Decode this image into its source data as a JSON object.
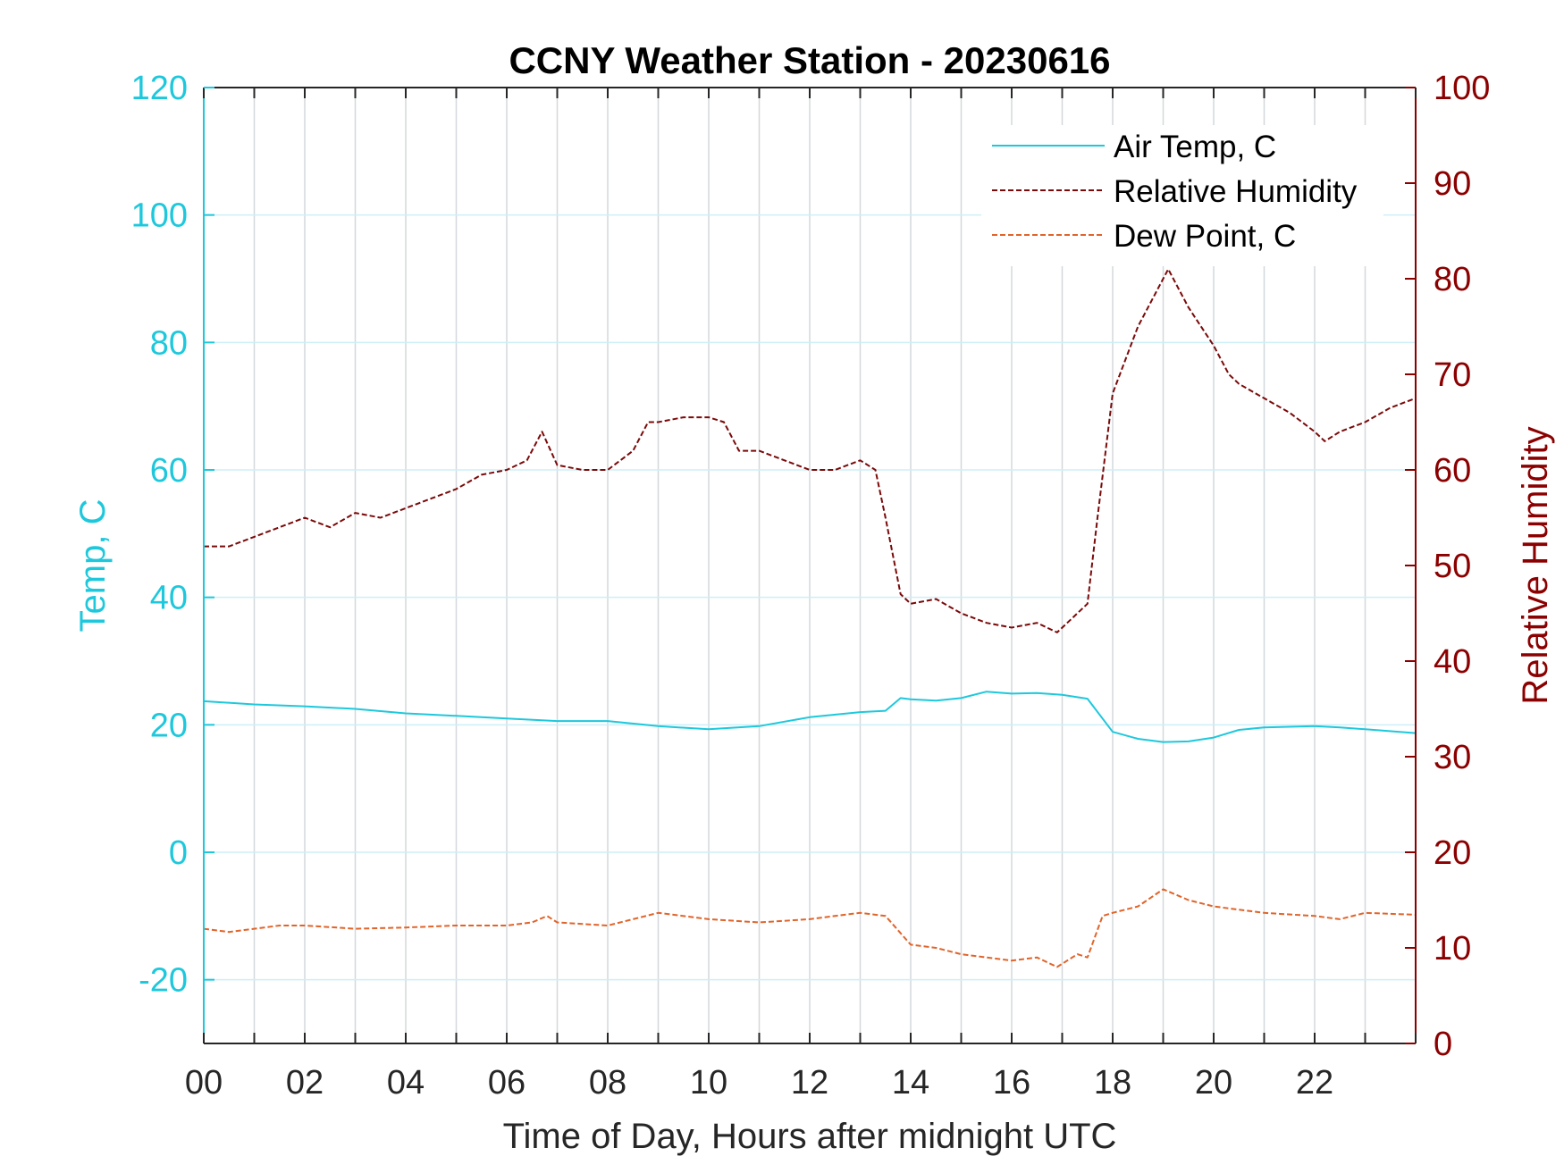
{
  "chart_data": {
    "type": "line",
    "title": "CCNY Weather Station - 20230616",
    "xlabel": "Time of Day, Hours after midnight UTC",
    "ylabel_left": "Temp, C",
    "ylabel_right": "Relative Humidity",
    "xlim": [
      0,
      24
    ],
    "ylim_left": [
      -30,
      120
    ],
    "ylim_right": [
      0,
      100
    ],
    "x_ticks": [
      0,
      2,
      4,
      6,
      8,
      10,
      12,
      14,
      16,
      18,
      20,
      22
    ],
    "x_tick_labels": [
      "00",
      "02",
      "04",
      "06",
      "08",
      "10",
      "12",
      "14",
      "16",
      "18",
      "20",
      "22"
    ],
    "y_left_ticks": [
      -20,
      0,
      20,
      40,
      60,
      80,
      100,
      120
    ],
    "y_left_tick_labels": [
      "-20",
      "0",
      "20",
      "40",
      "60",
      "80",
      "100",
      "120"
    ],
    "y_right_ticks": [
      0,
      10,
      20,
      30,
      40,
      50,
      60,
      70,
      80,
      90,
      100
    ],
    "y_right_tick_labels": [
      "0",
      "10",
      "20",
      "30",
      "40",
      "50",
      "60",
      "70",
      "80",
      "90",
      "100"
    ],
    "grid": true,
    "legend_position": "top-right",
    "colors": {
      "left_axis": "#1ec8dc",
      "right_axis": "#8b0000",
      "air_temp": "#1ec8dc",
      "relative_humidity": "#7a0a0a",
      "dew_point": "#e0642a",
      "grid_x": "#d4d8dc",
      "grid_y": "#cdeff7",
      "tick_x": "#262626"
    },
    "series": [
      {
        "name": "Air Temp, C",
        "axis": "left",
        "style": "solid",
        "x": [
          0,
          1,
          2,
          3,
          4,
          5,
          6,
          7,
          8,
          9,
          10,
          11,
          12,
          13,
          13.5,
          13.8,
          14,
          14.5,
          15,
          15.5,
          16,
          16.5,
          17,
          17.5,
          18,
          18.5,
          19,
          19.5,
          20,
          20.5,
          21,
          21.5,
          22,
          22.5,
          23,
          24
        ],
        "values": [
          23.7,
          23.2,
          22.9,
          22.5,
          21.8,
          21.4,
          21.0,
          20.6,
          20.6,
          19.8,
          19.3,
          19.8,
          21.2,
          22.0,
          22.2,
          24.2,
          24.0,
          23.8,
          24.2,
          25.2,
          24.9,
          25.0,
          24.7,
          24.1,
          18.9,
          17.8,
          17.3,
          17.4,
          18.0,
          19.2,
          19.6,
          19.7,
          19.8,
          19.6,
          19.3,
          18.7
        ]
      },
      {
        "name": "Relative Humidity",
        "axis": "right",
        "style": "dashed",
        "x": [
          0,
          0.5,
          1,
          1.5,
          2,
          2.5,
          3,
          3.5,
          4,
          4.5,
          5,
          5.5,
          6,
          6.4,
          6.7,
          7,
          7.5,
          8,
          8.5,
          8.8,
          9,
          9.5,
          10,
          10.3,
          10.6,
          11,
          11.5,
          12,
          12.5,
          13,
          13.3,
          13.5,
          13.8,
          14,
          14.5,
          15,
          15.5,
          16,
          16.5,
          16.9,
          17.1,
          17.5,
          17.7,
          18,
          18.5,
          19,
          19.1,
          19.5,
          20,
          20.3,
          20.5,
          21,
          21.5,
          22,
          22.2,
          22.5,
          23,
          23.5,
          24
        ],
        "values": [
          52,
          52,
          53,
          54,
          55,
          54,
          55.5,
          55,
          56,
          57,
          58,
          59.5,
          60,
          61,
          64,
          60.5,
          60,
          60,
          62,
          65,
          65,
          65.5,
          65.5,
          65,
          62,
          62,
          61,
          60,
          60,
          61,
          60,
          55,
          47,
          46,
          46.5,
          45,
          44,
          43.5,
          44,
          43,
          44,
          46,
          55,
          68,
          75,
          80,
          81,
          77,
          73,
          70,
          69,
          67.5,
          66,
          64,
          63,
          64,
          65,
          66.5,
          67.5
        ]
      },
      {
        "name": "Dew Point, C",
        "axis": "left",
        "style": "dashed",
        "x": [
          0,
          0.5,
          1,
          1.5,
          2,
          3,
          4,
          5,
          6,
          6.5,
          6.8,
          7,
          8,
          8.5,
          9,
          10,
          11,
          12,
          12.5,
          13,
          13.5,
          14,
          14.5,
          15,
          15.5,
          16,
          16.5,
          16.9,
          17.3,
          17.5,
          17.8,
          18,
          18.5,
          19,
          19.5,
          20,
          21,
          22,
          22.5,
          23,
          24
        ],
        "values": [
          -12,
          -12.5,
          -12,
          -11.5,
          -11.5,
          -12,
          -11.8,
          -11.5,
          -11.5,
          -11,
          -10,
          -11,
          -11.5,
          -10.5,
          -9.5,
          -10.5,
          -11,
          -10.5,
          -10,
          -9.5,
          -10,
          -14.5,
          -15,
          -16,
          -16.5,
          -17,
          -16.5,
          -18,
          -16,
          -16.5,
          -10,
          -9.5,
          -8.5,
          -5.8,
          -7.5,
          -8.5,
          -9.5,
          -10,
          -10.5,
          -9.5,
          -9.8
        ]
      }
    ]
  }
}
